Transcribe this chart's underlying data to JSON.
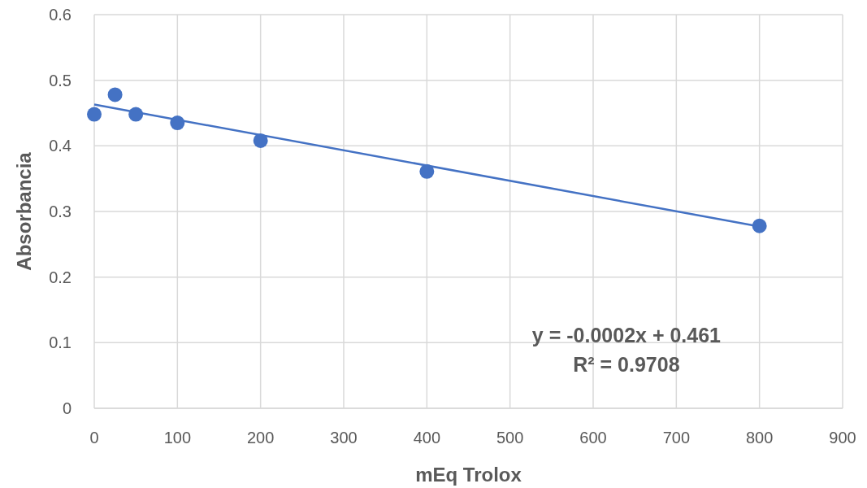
{
  "chart_data": {
    "type": "scatter",
    "xlabel": "mEq Trolox",
    "ylabel": "Absorbancia",
    "xlim": [
      0,
      900
    ],
    "xticks": [
      0,
      100,
      200,
      300,
      400,
      500,
      600,
      700,
      800,
      900
    ],
    "ylim": [
      0,
      0.6
    ],
    "yticks": [
      0,
      {
        "value": 0.1,
        "label": "0.1"
      },
      {
        "value": 0.2,
        "label": "0.2"
      },
      {
        "value": 0.3,
        "label": "0.3"
      },
      {
        "value": 0.4,
        "label": "0.4"
      },
      {
        "value": 0.5,
        "label": "0.5"
      },
      {
        "value": 0.6,
        "label": "0.6"
      }
    ],
    "grid": true,
    "series": [
      {
        "marker": "circle",
        "color": "#4472c4",
        "x": [
          0,
          25,
          50,
          100,
          200,
          400,
          800
        ],
        "values": [
          0.448,
          0.478,
          0.448,
          0.435,
          0.408,
          0.361,
          0.278
        ]
      },
      {
        "type": "line",
        "color": "#4472c4",
        "x": [
          0,
          800
        ],
        "values": [
          0.463,
          0.277
        ],
        "line_style": "solid",
        "marker": "none"
      }
    ],
    "annotations": [
      "y = -0.0002x  + 0.461",
      "R² = 0.9708"
    ]
  }
}
